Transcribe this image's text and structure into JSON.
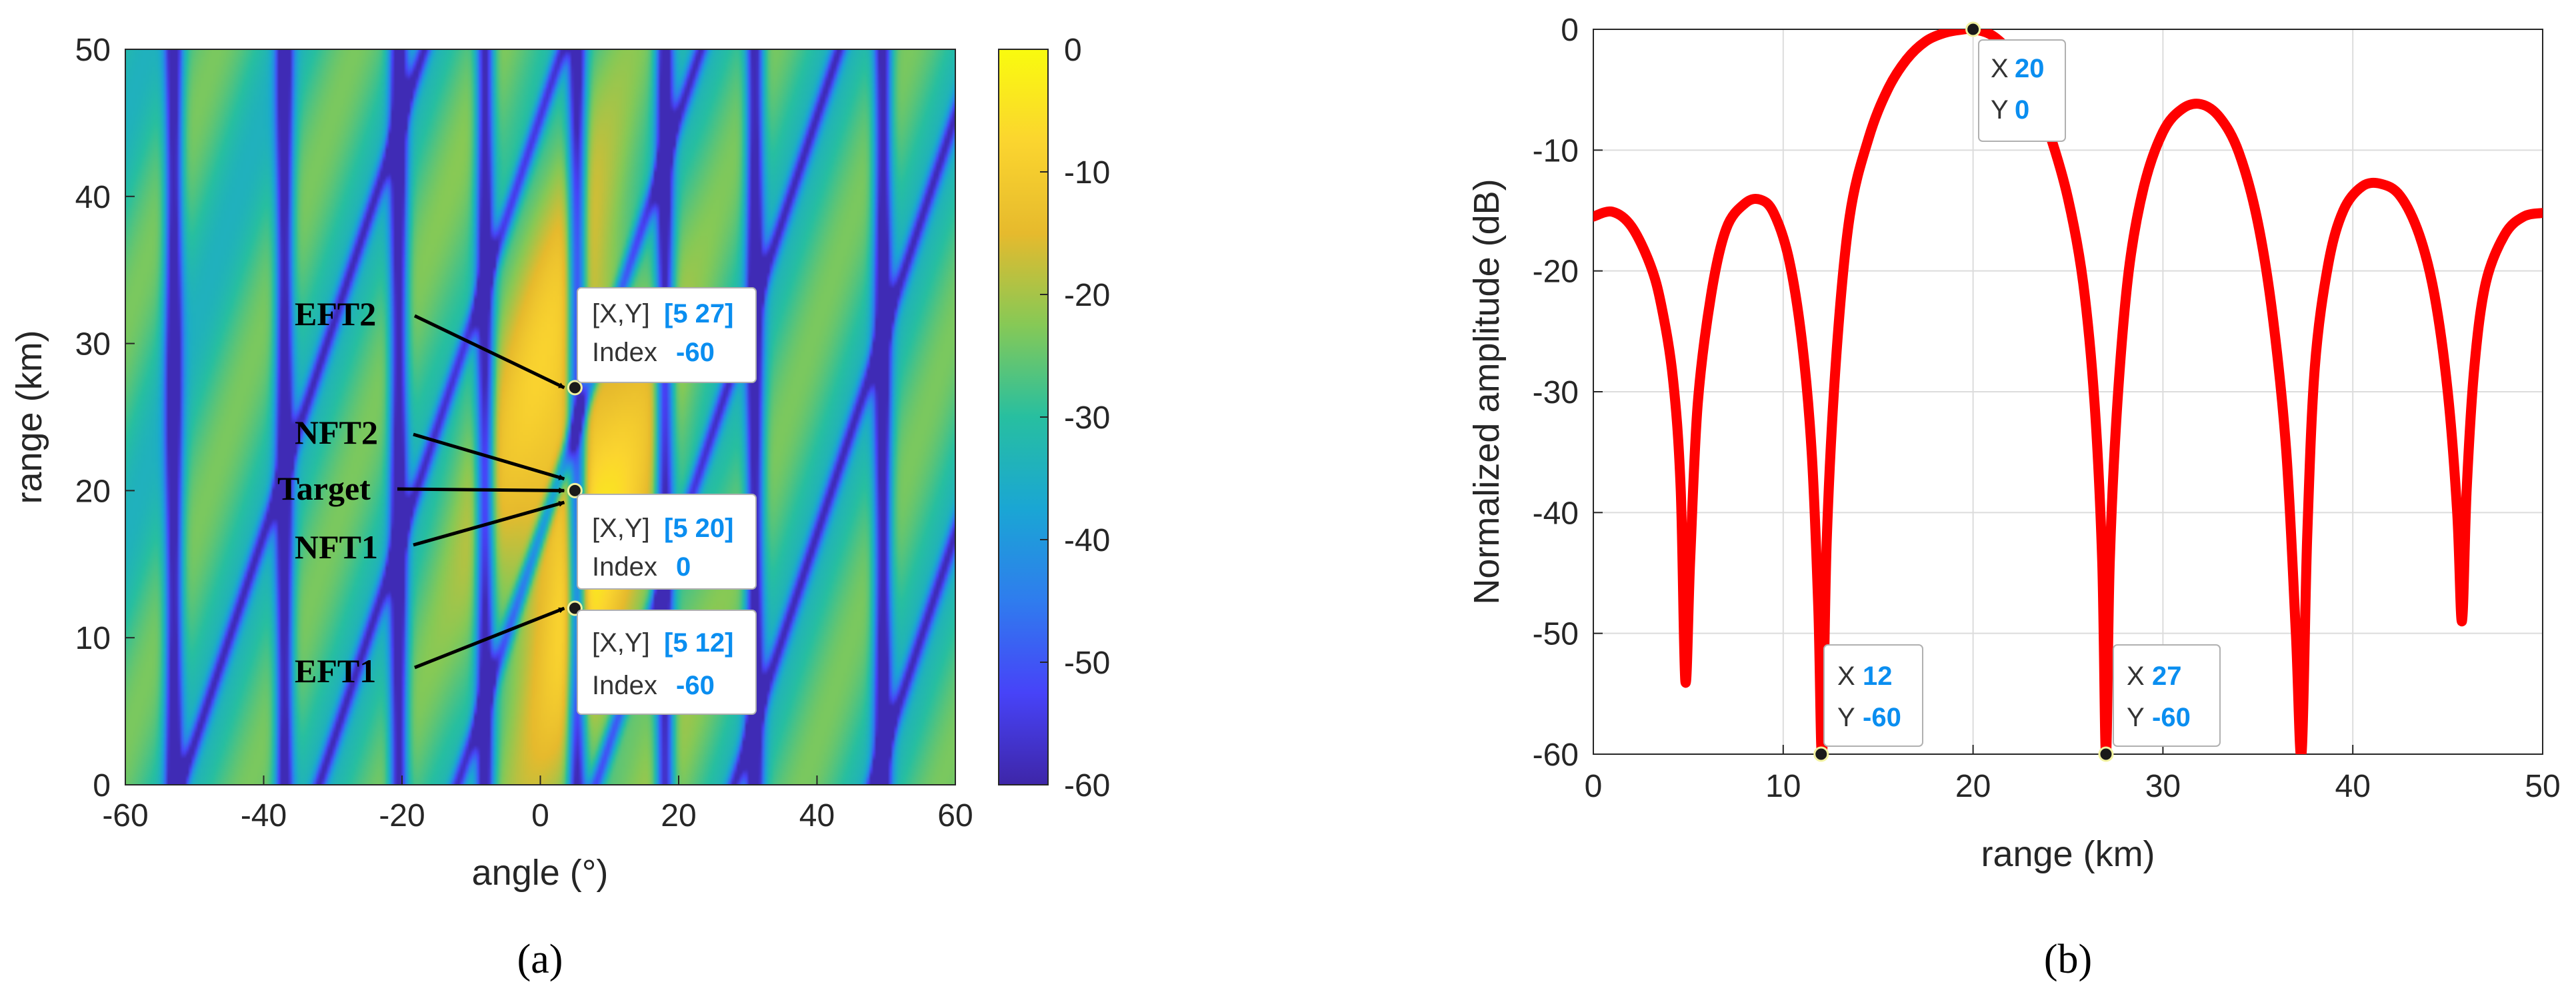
{
  "chart_data": [
    {
      "type": "heatmap",
      "panel": "(a)",
      "xlabel": "angle (°)",
      "ylabel": "range (km)",
      "xlim": [
        -60,
        60
      ],
      "ylim": [
        0,
        50
      ],
      "xticks": [
        "-60",
        "-40",
        "-20",
        "0",
        "20",
        "40",
        "60"
      ],
      "yticks": [
        "0",
        "10",
        "20",
        "30",
        "40",
        "50"
      ],
      "colorbar": {
        "min": -60,
        "max": 0,
        "ticks": [
          "0",
          "-10",
          "-20",
          "-30",
          "-40",
          "-50",
          "-60"
        ],
        "colormap": [
          "#3e26a8",
          "#4743f8",
          "#2f7cee",
          "#1aa6d4",
          "#27bfa0",
          "#86c956",
          "#e6ba2d",
          "#fbd52f",
          "#f9fb0e"
        ]
      },
      "vertical_nulls_deg": [
        -53,
        -37,
        -20.5,
        -8,
        5.3,
        18,
        31,
        49.5
      ],
      "slanted_null_slope_km_per_deg": 1.42,
      "slanted_null_offsets_deg": [
        -52,
        -32,
        -12,
        8,
        28,
        48,
        68
      ],
      "markers": [
        {
          "x": 5,
          "y": 27,
          "index": -60
        },
        {
          "x": 5,
          "y": 20,
          "index": 0
        },
        {
          "x": 5,
          "y": 12,
          "index": -60
        }
      ],
      "datatips": [
        {
          "key1": "[X,Y]",
          "val1": "[5 27]",
          "key2": "Index",
          "val2": "-60"
        },
        {
          "key1": "[X,Y]",
          "val1": "[5 20]",
          "key2": "Index",
          "val2": "0"
        },
        {
          "key1": "[X,Y]",
          "val1": "[5 12]",
          "key2": "Index",
          "val2": "-60"
        }
      ],
      "annotations": [
        {
          "label": "EFT2",
          "target": [
            5,
            27
          ]
        },
        {
          "label": "NFT2",
          "target": [
            5,
            20.8
          ]
        },
        {
          "label": "Target",
          "target": [
            5,
            20
          ]
        },
        {
          "label": "NFT1",
          "target": [
            5,
            19.2
          ]
        },
        {
          "label": "EFT1",
          "target": [
            5,
            12
          ]
        }
      ]
    },
    {
      "type": "line",
      "panel": "(b)",
      "xlabel": "range (km)",
      "ylabel": "Normalized amplitude (dB)",
      "xlim": [
        0,
        50
      ],
      "ylim": [
        -60,
        0
      ],
      "xticks": [
        "0",
        "10",
        "20",
        "30",
        "40",
        "50"
      ],
      "yticks": [
        "0",
        "-10",
        "-20",
        "-30",
        "-40",
        "-50",
        "-60"
      ],
      "grid": true,
      "line_color": "#ff0000",
      "series": [
        {
          "name": "normalized amplitude",
          "x": [
            0,
            1,
            2,
            3,
            3.6,
            4.2,
            4.6,
            4.85,
            5.1,
            5.5,
            6.2,
            7,
            8,
            8.8,
            9.5,
            10.3,
            11,
            11.5,
            11.85,
            12.05,
            12.3,
            12.8,
            13.5,
            14.5,
            15.5,
            16.5,
            17.5,
            18.5,
            19.3,
            20,
            21,
            22,
            23,
            24,
            25,
            25.8,
            26.4,
            26.8,
            27,
            27.2,
            27.6,
            28.2,
            29,
            30,
            31,
            32,
            33,
            34,
            35,
            35.8,
            36.5,
            37,
            37.3,
            37.6,
            38,
            38.7,
            39.5,
            40.5,
            41.5,
            42.5,
            43.5,
            44.3,
            45,
            45.5,
            45.75,
            46,
            46.4,
            47,
            48,
            49,
            50
          ],
          "y": [
            -15.5,
            -15.1,
            -16.3,
            -19.5,
            -23,
            -29,
            -38,
            -54,
            -44,
            -31,
            -22,
            -16.5,
            -14.4,
            -14.1,
            -15.2,
            -19,
            -26,
            -35,
            -48,
            -60,
            -42,
            -27,
            -15.5,
            -9,
            -5,
            -2.5,
            -1,
            -0.3,
            -0.05,
            0,
            -0.5,
            -2,
            -4.5,
            -8.5,
            -14,
            -21,
            -31,
            -44,
            -60,
            -44,
            -31,
            -20,
            -13,
            -8.5,
            -6.6,
            -6.2,
            -7.3,
            -10.2,
            -16,
            -24,
            -35,
            -50,
            -60,
            -42,
            -28,
            -19.5,
            -15,
            -13,
            -12.8,
            -13.8,
            -17,
            -22,
            -30,
            -40,
            -49,
            -38,
            -28,
            -21,
            -17,
            -15.5,
            -15.2
          ]
        }
      ],
      "datatips": [
        {
          "key1": "X",
          "val1": "20",
          "key2": "Y",
          "val2": "0",
          "x": 20,
          "y": 0
        },
        {
          "key1": "X",
          "val1": "12",
          "key2": "Y",
          "val2": "-60",
          "x": 12,
          "y": -60
        },
        {
          "key1": "X",
          "val1": "27",
          "key2": "Y",
          "val2": "-60",
          "x": 27,
          "y": -60
        }
      ]
    }
  ]
}
